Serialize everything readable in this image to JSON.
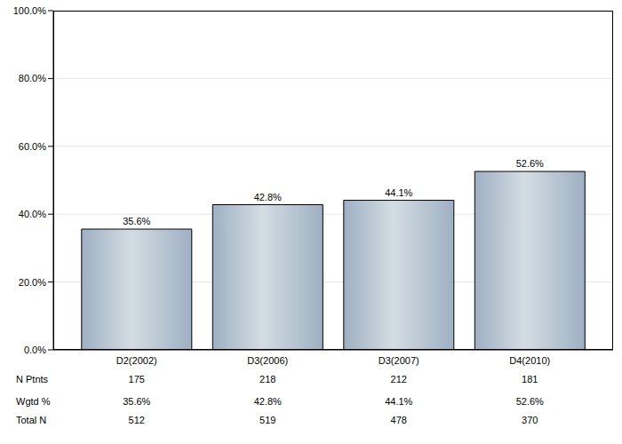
{
  "chart_data": {
    "type": "bar",
    "categories": [
      "D2(2002)",
      "D3(2006)",
      "D3(2007)",
      "D4(2010)"
    ],
    "values": [
      35.6,
      42.8,
      44.1,
      52.6
    ],
    "value_labels": [
      "35.6%",
      "42.8%",
      "44.1%",
      "52.6%"
    ],
    "color": "#9fb0c3",
    "ylim": [
      0,
      100
    ],
    "yticks": [
      {
        "value": 0,
        "label": "0.0%"
      },
      {
        "value": 20,
        "label": "20.0%"
      },
      {
        "value": 40,
        "label": "40.0%"
      },
      {
        "value": 60,
        "label": "60.0%"
      },
      {
        "value": 80,
        "label": "80.0%"
      },
      {
        "value": 100,
        "label": "100.0%"
      }
    ],
    "grid": true,
    "data_labels": true
  },
  "table": {
    "rows": [
      {
        "label": "N Ptnts",
        "values": [
          "175",
          "218",
          "212",
          "181"
        ]
      },
      {
        "label": "Wgtd %",
        "values": [
          "35.6%",
          "42.8%",
          "44.1%",
          "52.6%"
        ]
      },
      {
        "label": "Total N",
        "values": [
          "512",
          "519",
          "478",
          "370"
        ]
      }
    ]
  }
}
